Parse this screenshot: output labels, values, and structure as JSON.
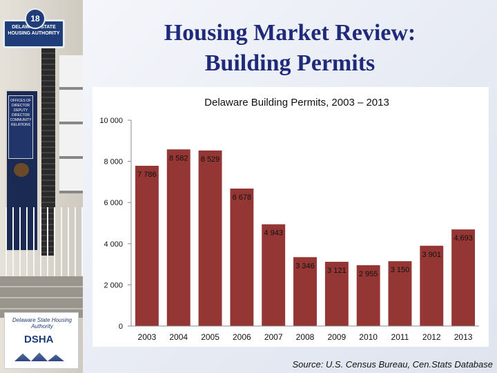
{
  "slide": {
    "title_line1": "Housing Market Review:",
    "title_line2": "Building Permits",
    "source": "Source: U.S. Census Bureau, Cen.Stats Database"
  },
  "photo": {
    "badge": "18",
    "sign": "DELAWARE STATE HOUSING AUTHORITY",
    "door_sign": "OFFICES OF DIRECTOR DEPUTY DIRECTOR COMMUNITY RELATIONS"
  },
  "logo": {
    "arc_text": "Delaware State Housing Authority",
    "text": "DSHA"
  },
  "colors": {
    "bar": "#943634",
    "title": "#1f2a7a"
  },
  "chart_data": {
    "type": "bar",
    "title": "Delaware Building Permits, 2003 – 2013",
    "categories": [
      "2003",
      "2004",
      "2005",
      "2006",
      "2007",
      "2008",
      "2009",
      "2010",
      "2011",
      "2012",
      "2013"
    ],
    "values": [
      7786,
      8582,
      8529,
      6678,
      4943,
      3346,
      3121,
      2955,
      3150,
      3901,
      4693
    ],
    "data_labels": [
      "7 786",
      "8 582",
      "8 529",
      "6 678",
      "4 943",
      "3 346",
      "3 121",
      "2 955",
      "3 150",
      "3 901",
      "4,693"
    ],
    "y_ticks": [
      0,
      2000,
      4000,
      6000,
      8000,
      10000
    ],
    "y_tick_labels": [
      "0",
      "2 000",
      "4 000",
      "6 000",
      "8 000",
      "10 000"
    ],
    "ylim": [
      0,
      10000
    ],
    "xlabel": "",
    "ylabel": "",
    "grid": false,
    "legend": "none"
  }
}
